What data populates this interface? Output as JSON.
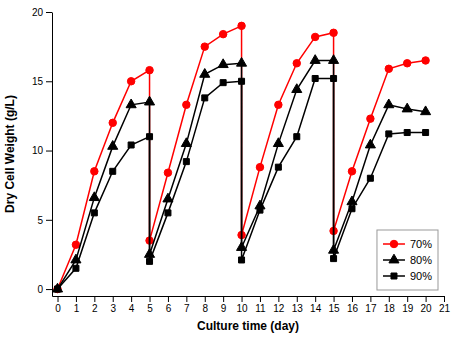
{
  "chart_data": {
    "type": "line",
    "xlabel": "Culture time (day)",
    "ylabel": "Dry Cell Weight (g/L)",
    "x": [
      0,
      1,
      2,
      3,
      4,
      5,
      5,
      6,
      7,
      8,
      9,
      10,
      10,
      11,
      12,
      13,
      14,
      15,
      15,
      16,
      17,
      18,
      19,
      20
    ],
    "series": [
      {
        "name": "70%",
        "color": "#ff0000",
        "marker": "circle",
        "values": [
          0,
          3.2,
          8.5,
          12.0,
          15.0,
          15.8,
          3.5,
          8.4,
          13.3,
          17.5,
          18.4,
          19.0,
          3.9,
          8.8,
          13.3,
          16.3,
          18.2,
          18.5,
          4.2,
          8.5,
          12.3,
          15.9,
          16.3,
          16.5
        ]
      },
      {
        "name": "80%",
        "color": "#000000",
        "marker": "triangle",
        "values": [
          0,
          2.1,
          6.6,
          10.3,
          13.3,
          13.5,
          2.5,
          6.5,
          10.5,
          15.5,
          16.2,
          16.3,
          3.0,
          6.0,
          10.5,
          14.4,
          16.5,
          16.5,
          2.8,
          6.3,
          10.4,
          13.3,
          13.0,
          12.8
        ]
      },
      {
        "name": "90%",
        "color": "#000000",
        "marker": "square",
        "values": [
          0,
          1.5,
          5.5,
          8.5,
          10.4,
          11.0,
          2.0,
          5.5,
          9.2,
          13.8,
          14.9,
          15.0,
          2.1,
          5.7,
          8.8,
          11.0,
          15.2,
          15.2,
          2.2,
          5.8,
          8.0,
          11.2,
          11.3,
          11.3
        ]
      }
    ],
    "xlim": [
      -0.3,
      21
    ],
    "ylim": [
      -0.5,
      20
    ],
    "xticks": [
      0,
      1,
      2,
      3,
      4,
      5,
      6,
      7,
      8,
      9,
      10,
      11,
      12,
      13,
      14,
      15,
      16,
      17,
      18,
      19,
      20,
      21
    ],
    "yticks": [
      0,
      5,
      10,
      15,
      20
    ],
    "grid": false,
    "legend": "lower right"
  }
}
